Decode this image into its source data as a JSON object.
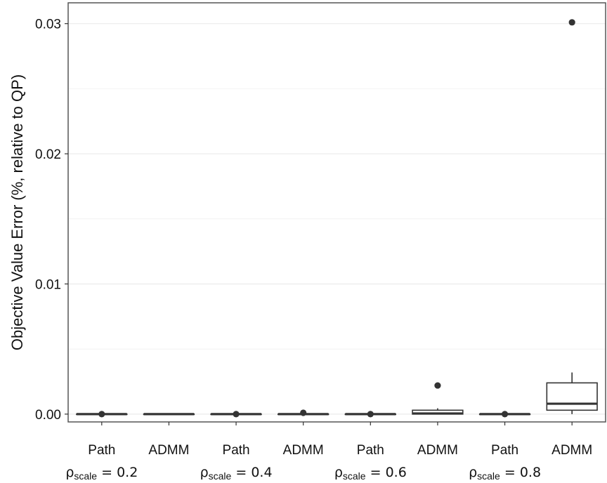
{
  "chart_data": {
    "type": "boxplot",
    "ylabel": "Objective Value Error (%, relative to QP)",
    "xlabel": "",
    "ylim": [
      -0.0006,
      0.0316
    ],
    "yticks": [
      0.0,
      0.01,
      0.02,
      0.03
    ],
    "ytick_labels": [
      "0.00",
      "0.01",
      "0.02",
      "0.03"
    ],
    "grid": true,
    "categories": [
      "Path",
      "ADMM",
      "Path",
      "ADMM",
      "Path",
      "ADMM",
      "Path",
      "ADMM"
    ],
    "groups": [
      {
        "symbol": "ρ",
        "subscript": "scale",
        "value_label": "= 0.2"
      },
      {
        "symbol": "ρ",
        "subscript": "scale",
        "value_label": "= 0.4"
      },
      {
        "symbol": "ρ",
        "subscript": "scale",
        "value_label": "= 0.6"
      },
      {
        "symbol": "ρ",
        "subscript": "scale",
        "value_label": "= 0.8"
      }
    ],
    "boxes": [
      {
        "label": "Path",
        "whisker_low": 0,
        "q1": 0,
        "median": 0,
        "q3": 0,
        "whisker_high": 0,
        "outliers": [
          0
        ]
      },
      {
        "label": "ADMM",
        "whisker_low": 0,
        "q1": 0,
        "median": 0,
        "q3": 0,
        "whisker_high": 0,
        "outliers": []
      },
      {
        "label": "Path",
        "whisker_low": 0,
        "q1": 0,
        "median": 0,
        "q3": 0,
        "whisker_high": 0,
        "outliers": [
          0
        ]
      },
      {
        "label": "ADMM",
        "whisker_low": 0,
        "q1": 0,
        "median": 0,
        "q3": 0,
        "whisker_high": 0,
        "outliers": [
          0.0001
        ]
      },
      {
        "label": "Path",
        "whisker_low": 0,
        "q1": 0,
        "median": 0,
        "q3": 0,
        "whisker_high": 0,
        "outliers": [
          0
        ]
      },
      {
        "label": "ADMM",
        "whisker_low": 0,
        "q1": 0.0,
        "median": 5e-05,
        "q3": 0.0003,
        "whisker_high": 0.00045,
        "outliers": [
          0.0022
        ]
      },
      {
        "label": "Path",
        "whisker_low": 0,
        "q1": 0,
        "median": 0,
        "q3": 0,
        "whisker_high": 0,
        "outliers": [
          0
        ]
      },
      {
        "label": "ADMM",
        "whisker_low": 0.0,
        "q1": 0.0003,
        "median": 0.0008,
        "q3": 0.0024,
        "whisker_high": 0.0032,
        "outliers": [
          0.0301
        ]
      }
    ]
  },
  "colors": {
    "panel_border": "#555555",
    "gridline": "#ebebeb",
    "box": "#333333",
    "text": "#111111"
  }
}
